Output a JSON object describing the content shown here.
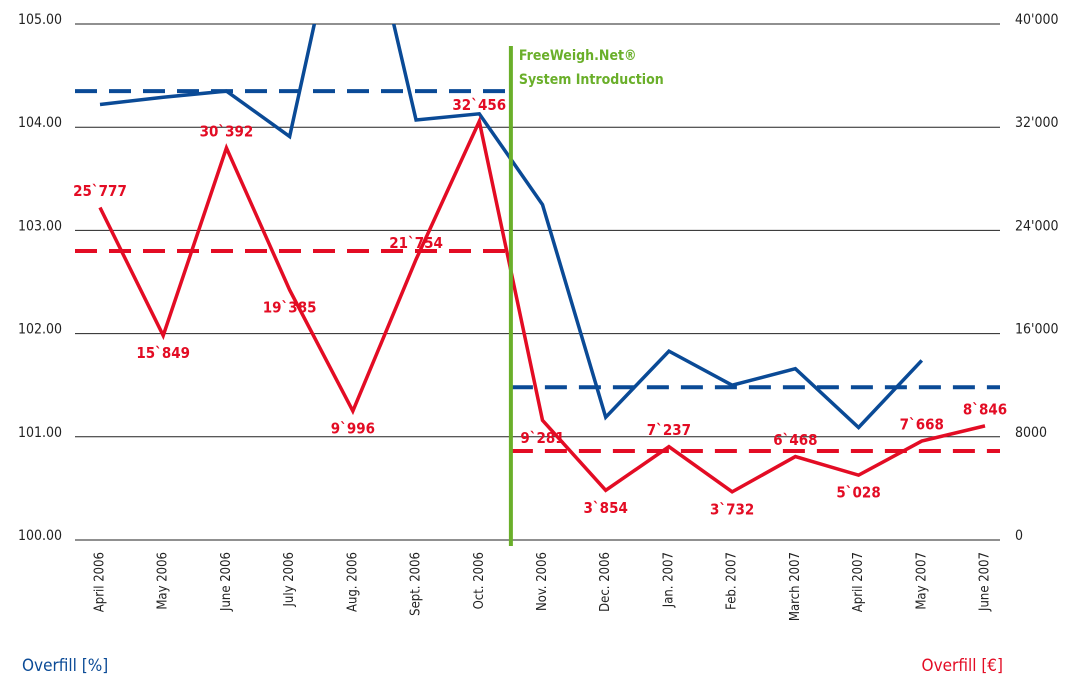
{
  "chart_data": {
    "type": "line",
    "categories": [
      "April 2006",
      "May 2006",
      "June 2006",
      "July 2006",
      "Aug. 2006",
      "Sept. 2006",
      "Oct. 2006",
      "Nov. 2006",
      "Dec. 2006",
      "Jan. 2007",
      "Feb. 2007",
      "March 2007",
      "April 2007",
      "May 2007",
      "June 2007"
    ],
    "series": [
      {
        "name": "Overfill [%]",
        "color": "#0a4a96",
        "axis": "y",
        "values": [
          104.22,
          104.29,
          104.35,
          103.91,
          106.7,
          104.07,
          104.13,
          103.25,
          101.19,
          101.83,
          101.5,
          101.66,
          101.09,
          101.74,
          null
        ]
      },
      {
        "name": "Overfill [€]",
        "color": "#e30c24",
        "axis": "y2",
        "values": [
          25777,
          15849,
          30392,
          19385,
          9996,
          21754,
          32456,
          9281,
          3854,
          7237,
          3732,
          6468,
          5028,
          7668,
          8846
        ],
        "value_labels": [
          "25`777",
          "15`849",
          "30`392",
          "19`385",
          "9`996",
          "21`754",
          "32`456",
          "9`281",
          "3`854",
          "7`237",
          "3`732",
          "6`468",
          "5`028",
          "7`668",
          "8`846"
        ]
      }
    ],
    "averages": {
      "before": {
        "y": 104.35,
        "y2": 22400
      },
      "after": {
        "y": 101.48,
        "y2": 6900
      }
    },
    "annotation": {
      "lines": [
        "FreeWeigh.Net®",
        "System Introduction"
      ],
      "after": "Oct. 2006",
      "color": "#6aaf2a"
    },
    "ylim": [
      100,
      105
    ],
    "yticks": [
      {
        "value": 100,
        "label": "100.00"
      },
      {
        "value": 101,
        "label": "101.00"
      },
      {
        "value": 102,
        "label": "102.00"
      },
      {
        "value": 103,
        "label": "103.00"
      },
      {
        "value": 104,
        "label": "104.00"
      },
      {
        "value": 105,
        "label": "105.00"
      }
    ],
    "y2lim": [
      0,
      40000
    ],
    "y2ticks": [
      0,
      8000,
      {
        "value": 16000,
        "label": "16'000"
      },
      {
        "value": 24000,
        "label": "24'000"
      },
      {
        "value": 32000,
        "label": "32'000"
      },
      {
        "value": 40000,
        "label": "40'000"
      }
    ],
    "grid": true
  }
}
